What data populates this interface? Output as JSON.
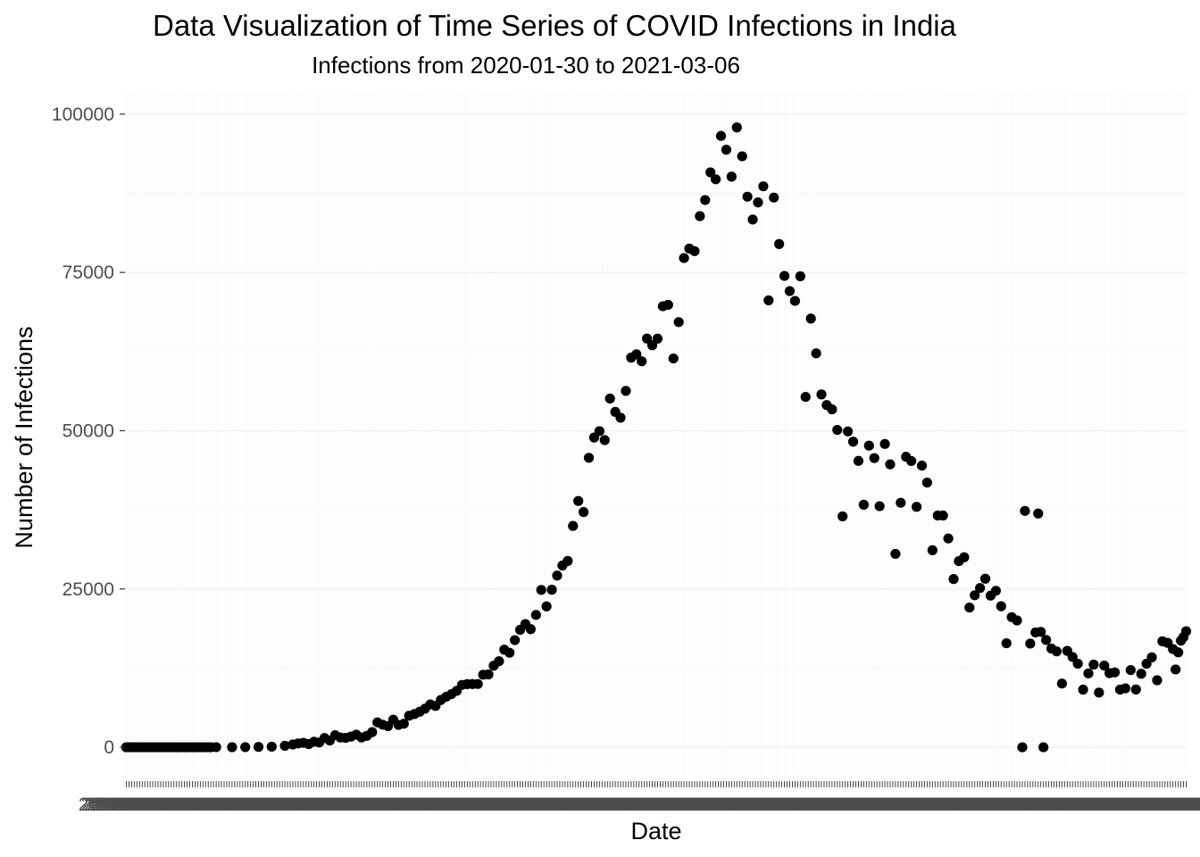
{
  "chart_data": {
    "type": "scatter",
    "title": "Data Visualization of Time Series of COVID Infections in India",
    "subtitle": "Infections from 2020-01-30 to 2021-03-06",
    "xlabel": "Date",
    "ylabel": "Number of Infections",
    "x_start": "2020-01-30",
    "x_end": "2021-03-06",
    "x_axis": "discrete-dates",
    "ylim": [
      -4500,
      103500
    ],
    "yticks": [
      0,
      25000,
      50000,
      75000,
      100000
    ],
    "ytick_labels": [
      "0",
      "25000",
      "50000",
      "75000",
      "100000"
    ],
    "grid": true,
    "legend": "none",
    "point_color": "#000000",
    "series": [
      {
        "date_points": [
          [
            "2020-01-30",
            1
          ],
          [
            "2020-02-02",
            1
          ],
          [
            "2020-02-03",
            1
          ],
          [
            "2020-03-02",
            2
          ],
          [
            "2020-03-04",
            22
          ],
          [
            "2020-03-10",
            12
          ],
          [
            "2020-03-15",
            24
          ],
          [
            "2020-03-20",
            59
          ],
          [
            "2020-03-25",
            89
          ],
          [
            "2020-03-30",
            227
          ],
          [
            "2020-04-02",
            437
          ],
          [
            "2020-04-04",
            601
          ],
          [
            "2020-04-06",
            704
          ],
          [
            "2020-04-08",
            508
          ],
          [
            "2020-04-10",
            871
          ],
          [
            "2020-04-12",
            758
          ],
          [
            "2020-04-14",
            1463
          ],
          [
            "2020-04-16",
            1061
          ],
          [
            "2020-04-18",
            1893
          ],
          [
            "2020-04-20",
            1540
          ],
          [
            "2020-04-22",
            1486
          ],
          [
            "2020-04-24",
            1684
          ],
          [
            "2020-04-26",
            1990
          ],
          [
            "2020-04-28",
            1543
          ],
          [
            "2020-04-30",
            1801
          ],
          [
            "2020-05-02",
            2394
          ],
          [
            "2020-05-04",
            3932
          ],
          [
            "2020-05-06",
            3561
          ],
          [
            "2020-05-08",
            3344
          ],
          [
            "2020-05-10",
            4353
          ],
          [
            "2020-05-12",
            3525
          ],
          [
            "2020-05-14",
            3722
          ],
          [
            "2020-05-16",
            4987
          ],
          [
            "2020-05-18",
            5242
          ],
          [
            "2020-05-20",
            5611
          ],
          [
            "2020-05-22",
            6088
          ],
          [
            "2020-05-24",
            6767
          ],
          [
            "2020-05-26",
            6535
          ],
          [
            "2020-05-28",
            7466
          ],
          [
            "2020-05-30",
            7964
          ],
          [
            "2020-06-01",
            8392
          ],
          [
            "2020-06-03",
            8909
          ],
          [
            "2020-06-05",
            9851
          ],
          [
            "2020-06-07",
            9971
          ],
          [
            "2020-06-09",
            9985
          ],
          [
            "2020-06-11",
            9996
          ],
          [
            "2020-06-13",
            11458
          ],
          [
            "2020-06-15",
            11502
          ],
          [
            "2020-06-17",
            12881
          ],
          [
            "2020-06-19",
            13586
          ],
          [
            "2020-06-21",
            15413
          ],
          [
            "2020-06-23",
            14933
          ],
          [
            "2020-06-25",
            16922
          ],
          [
            "2020-06-27",
            18552
          ],
          [
            "2020-06-29",
            19459
          ],
          [
            "2020-07-01",
            18653
          ],
          [
            "2020-07-03",
            20903
          ],
          [
            "2020-07-05",
            24850
          ],
          [
            "2020-07-07",
            22252
          ],
          [
            "2020-07-09",
            24879
          ],
          [
            "2020-07-11",
            27114
          ],
          [
            "2020-07-13",
            28701
          ],
          [
            "2020-07-15",
            29429
          ],
          [
            "2020-07-17",
            34956
          ],
          [
            "2020-07-19",
            38902
          ],
          [
            "2020-07-21",
            37148
          ],
          [
            "2020-07-23",
            45720
          ],
          [
            "2020-07-25",
            48916
          ],
          [
            "2020-07-27",
            49931
          ],
          [
            "2020-07-29",
            48513
          ],
          [
            "2020-07-31",
            55078
          ],
          [
            "2020-08-02",
            52972
          ],
          [
            "2020-08-04",
            52050
          ],
          [
            "2020-08-06",
            56282
          ],
          [
            "2020-08-08",
            61537
          ],
          [
            "2020-08-10",
            62064
          ],
          [
            "2020-08-12",
            60963
          ],
          [
            "2020-08-14",
            64553
          ],
          [
            "2020-08-16",
            63490
          ],
          [
            "2020-08-18",
            64531
          ],
          [
            "2020-08-20",
            69652
          ],
          [
            "2020-08-22",
            69878
          ],
          [
            "2020-08-24",
            61408
          ],
          [
            "2020-08-26",
            67151
          ],
          [
            "2020-08-28",
            77266
          ],
          [
            "2020-08-30",
            78761
          ],
          [
            "2020-09-01",
            78357
          ],
          [
            "2020-09-03",
            83883
          ],
          [
            "2020-09-05",
            86432
          ],
          [
            "2020-09-07",
            90802
          ],
          [
            "2020-09-09",
            89706
          ],
          [
            "2020-09-11",
            96551
          ],
          [
            "2020-09-13",
            94372
          ],
          [
            "2020-09-15",
            90123
          ],
          [
            "2020-09-17",
            97894
          ],
          [
            "2020-09-19",
            93337
          ],
          [
            "2020-09-21",
            86961
          ],
          [
            "2020-09-23",
            83347
          ],
          [
            "2020-09-25",
            86052
          ],
          [
            "2020-09-27",
            88600
          ],
          [
            "2020-09-29",
            70589
          ],
          [
            "2020-10-01",
            86821
          ],
          [
            "2020-10-03",
            79476
          ],
          [
            "2020-10-05",
            74442
          ],
          [
            "2020-10-07",
            72049
          ],
          [
            "2020-10-09",
            70496
          ],
          [
            "2020-10-11",
            74383
          ],
          [
            "2020-10-13",
            55342
          ],
          [
            "2020-10-15",
            67708
          ],
          [
            "2020-10-17",
            62211
          ],
          [
            "2020-10-19",
            55722
          ],
          [
            "2020-10-21",
            54044
          ],
          [
            "2020-10-23",
            53370
          ],
          [
            "2020-10-25",
            50129
          ],
          [
            "2020-10-27",
            36469
          ],
          [
            "2020-10-29",
            49881
          ],
          [
            "2020-10-31",
            48268
          ],
          [
            "2020-11-02",
            45231
          ],
          [
            "2020-11-04",
            38310
          ],
          [
            "2020-11-06",
            47638
          ],
          [
            "2020-11-08",
            45674
          ],
          [
            "2020-11-10",
            38074
          ],
          [
            "2020-11-12",
            47905
          ],
          [
            "2020-11-14",
            44684
          ],
          [
            "2020-11-16",
            30548
          ],
          [
            "2020-11-18",
            38617
          ],
          [
            "2020-11-20",
            45882
          ],
          [
            "2020-11-22",
            45209
          ],
          [
            "2020-11-24",
            37975
          ],
          [
            "2020-11-26",
            44489
          ],
          [
            "2020-11-28",
            41810
          ],
          [
            "2020-11-30",
            31118
          ],
          [
            "2020-12-02",
            36604
          ],
          [
            "2020-12-04",
            36595
          ],
          [
            "2020-12-06",
            32981
          ],
          [
            "2020-12-08",
            26567
          ],
          [
            "2020-12-10",
            29398
          ],
          [
            "2020-12-12",
            30005
          ],
          [
            "2020-12-14",
            22065
          ],
          [
            "2020-12-16",
            24010
          ],
          [
            "2020-12-18",
            25153
          ],
          [
            "2020-12-20",
            26624
          ],
          [
            "2020-12-22",
            23950
          ],
          [
            "2020-12-24",
            24712
          ],
          [
            "2020-12-26",
            22272
          ],
          [
            "2020-12-28",
            16432
          ],
          [
            "2020-12-30",
            20550
          ],
          [
            "2021-01-01",
            20035
          ],
          [
            "2021-01-03",
            0
          ],
          [
            "2021-01-04",
            37326
          ],
          [
            "2021-01-06",
            16375
          ],
          [
            "2021-01-08",
            18139
          ],
          [
            "2021-01-09",
            36919
          ],
          [
            "2021-01-10",
            18222
          ],
          [
            "2021-01-11",
            0
          ],
          [
            "2021-01-12",
            16946
          ],
          [
            "2021-01-14",
            15590
          ],
          [
            "2021-01-16",
            15144
          ],
          [
            "2021-01-18",
            10064
          ],
          [
            "2021-01-20",
            15223
          ],
          [
            "2021-01-22",
            14256
          ],
          [
            "2021-01-24",
            13203
          ],
          [
            "2021-01-26",
            9102
          ],
          [
            "2021-01-28",
            11666
          ],
          [
            "2021-01-30",
            13052
          ],
          [
            "2021-02-01",
            8635
          ],
          [
            "2021-02-03",
            12899
          ],
          [
            "2021-02-05",
            11713
          ],
          [
            "2021-02-07",
            11831
          ],
          [
            "2021-02-09",
            9110
          ],
          [
            "2021-02-11",
            9309
          ],
          [
            "2021-02-13",
            12194
          ],
          [
            "2021-02-15",
            9121
          ],
          [
            "2021-02-17",
            11610
          ],
          [
            "2021-02-19",
            13193
          ],
          [
            "2021-02-21",
            14199
          ],
          [
            "2021-02-23",
            10584
          ],
          [
            "2021-02-25",
            16738
          ],
          [
            "2021-02-27",
            16488
          ],
          [
            "2021-03-01",
            15510
          ],
          [
            "2021-03-02",
            12286
          ],
          [
            "2021-03-03",
            14989
          ],
          [
            "2021-03-04",
            16838
          ],
          [
            "2021-03-05",
            17407
          ],
          [
            "2021-03-06",
            18327
          ]
        ]
      }
    ]
  }
}
